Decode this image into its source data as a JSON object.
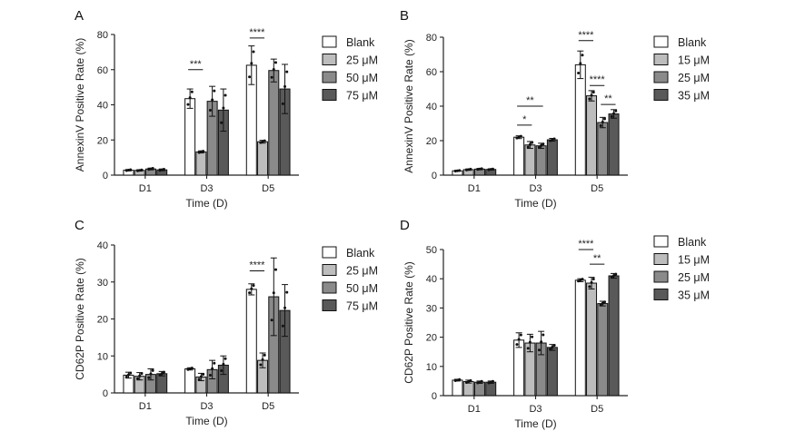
{
  "chart_data": [
    {
      "panel": "A",
      "type": "bar",
      "xlabel": "Time (D)",
      "ylabel": "AnnexinV Positive Rate (%)",
      "ylim": [
        0,
        80
      ],
      "yticks": [
        0,
        20,
        40,
        60,
        80
      ],
      "categories": [
        "D1",
        "D3",
        "D5"
      ],
      "legend_position": "right",
      "series": [
        {
          "name": "Blank",
          "color": "#ffffff",
          "values": [
            2.8,
            43.5,
            62.5
          ],
          "errors": [
            0.4,
            5.5,
            11.0
          ]
        },
        {
          "name": "25 μM",
          "color": "#bdbdbd",
          "values": [
            2.7,
            13.2,
            19.0
          ],
          "errors": [
            0.4,
            0.6,
            0.8
          ]
        },
        {
          "name": "50 μM",
          "color": "#8a8a8a",
          "values": [
            3.5,
            42.0,
            59.5
          ],
          "errors": [
            0.5,
            8.5,
            6.5
          ]
        },
        {
          "name": "75 μM",
          "color": "#595959",
          "values": [
            3.0,
            37.0,
            49.0
          ],
          "errors": [
            0.5,
            12.0,
            14.0
          ]
        }
      ],
      "significance": [
        {
          "label": "***",
          "category": 1,
          "from": 0,
          "to": 1,
          "y": 60
        },
        {
          "label": "****",
          "category": 2,
          "from": 0,
          "to": 1,
          "y": 78
        }
      ]
    },
    {
      "panel": "B",
      "type": "bar",
      "xlabel": "Time (D)",
      "ylabel": "AnnexinV Positive Rate (%)",
      "ylim": [
        0,
        80
      ],
      "yticks": [
        0,
        20,
        40,
        60,
        80
      ],
      "categories": [
        "D1",
        "D3",
        "D5"
      ],
      "legend_position": "right",
      "series": [
        {
          "name": "Blank",
          "color": "#ffffff",
          "values": [
            2.5,
            22.0,
            64.0
          ],
          "errors": [
            0.3,
            0.8,
            8.0
          ]
        },
        {
          "name": "15 μM",
          "color": "#bdbdbd",
          "values": [
            3.2,
            17.5,
            46.0
          ],
          "errors": [
            0.4,
            2.0,
            3.0
          ]
        },
        {
          "name": "25 μM",
          "color": "#8a8a8a",
          "values": [
            3.5,
            17.0,
            30.5
          ],
          "errors": [
            0.4,
            1.5,
            3.0
          ]
        },
        {
          "name": "35 μM",
          "color": "#595959",
          "values": [
            3.3,
            20.5,
            35.5
          ],
          "errors": [
            0.4,
            0.8,
            2.5
          ]
        }
      ],
      "significance": [
        {
          "label": "*",
          "category": 1,
          "from": 0,
          "to": 1,
          "y": 29
        },
        {
          "label": "**",
          "category": 1,
          "from": 0,
          "to": 2,
          "y": 40
        },
        {
          "label": "****",
          "category": 2,
          "from": 0,
          "to": 1,
          "y": 78
        },
        {
          "label": "****",
          "category": 2,
          "from": 1,
          "to": 2,
          "y": 52
        },
        {
          "label": "**",
          "category": 2,
          "from": 2,
          "to": 3,
          "y": 41
        }
      ]
    },
    {
      "panel": "C",
      "type": "bar",
      "xlabel": "Time (D)",
      "ylabel": "CD62P Positive Rate (%)",
      "ylim": [
        0,
        40
      ],
      "yticks": [
        0,
        10,
        20,
        30,
        40
      ],
      "categories": [
        "D1",
        "D3",
        "D5"
      ],
      "legend_position": "right",
      "series": [
        {
          "name": "Blank",
          "color": "#ffffff",
          "values": [
            4.8,
            6.5,
            28.0
          ],
          "errors": [
            0.8,
            0.3,
            1.5
          ]
        },
        {
          "name": "25 μM",
          "color": "#bdbdbd",
          "values": [
            4.5,
            4.3,
            8.8
          ],
          "errors": [
            1.0,
            1.0,
            2.0
          ]
        },
        {
          "name": "50 μM",
          "color": "#8a8a8a",
          "values": [
            5.0,
            6.3,
            26.0
          ],
          "errors": [
            1.5,
            2.5,
            10.5
          ]
        },
        {
          "name": "75 μM",
          "color": "#595959",
          "values": [
            5.2,
            7.5,
            22.3
          ],
          "errors": [
            0.6,
            2.5,
            7.0
          ]
        }
      ],
      "significance": [
        {
          "label": "****",
          "category": 2,
          "from": 0,
          "to": 1,
          "y": 33
        }
      ]
    },
    {
      "panel": "D",
      "type": "bar",
      "xlabel": "Time (D)",
      "ylabel": "CD62P Positive Rate (%)",
      "ylim": [
        0,
        50
      ],
      "yticks": [
        0,
        10,
        20,
        30,
        40,
        50
      ],
      "categories": [
        "D1",
        "D3",
        "D5"
      ],
      "legend_position": "right",
      "series": [
        {
          "name": "Blank",
          "color": "#ffffff",
          "values": [
            5.3,
            19.0,
            39.5
          ],
          "errors": [
            0.3,
            2.5,
            0.5
          ]
        },
        {
          "name": "15 μM",
          "color": "#bdbdbd",
          "values": [
            4.8,
            18.0,
            38.5
          ],
          "errors": [
            0.5,
            3.0,
            2.0
          ]
        },
        {
          "name": "25 μM",
          "color": "#8a8a8a",
          "values": [
            4.6,
            18.0,
            31.5
          ],
          "errors": [
            0.4,
            4.0,
            0.8
          ]
        },
        {
          "name": "35 μM",
          "color": "#595959",
          "values": [
            4.6,
            16.5,
            41.0
          ],
          "errors": [
            0.4,
            1.0,
            0.8
          ]
        }
      ],
      "significance": [
        {
          "label": "****",
          "category": 2,
          "from": 0,
          "to": 1,
          "y": 50
        },
        {
          "label": "**",
          "category": 2,
          "from": 1,
          "to": 2,
          "y": 45
        }
      ]
    }
  ]
}
